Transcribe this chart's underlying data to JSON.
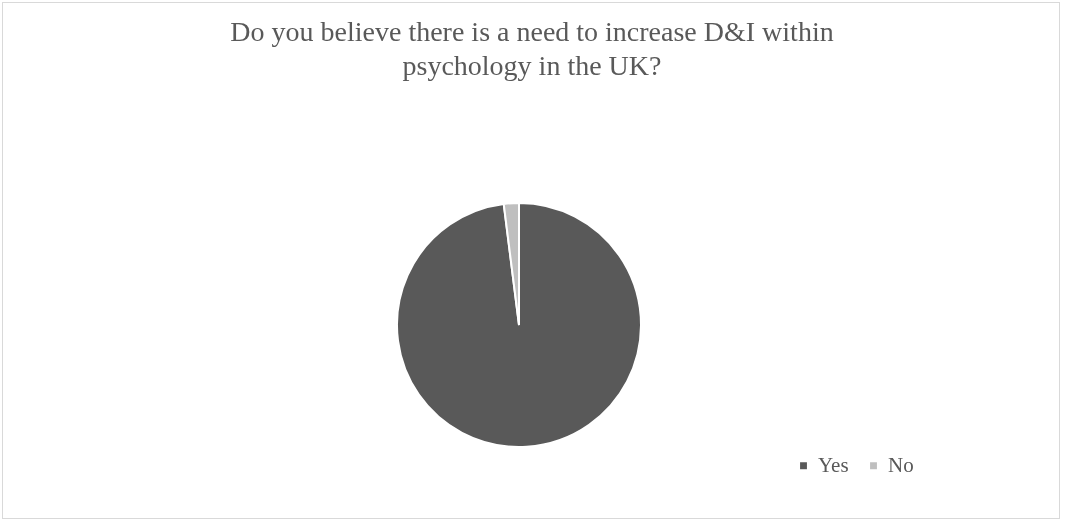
{
  "chart_data": {
    "type": "pie",
    "title": "Do you believe there is a need to increase D&I within psychology in the UK?",
    "categories": [
      "Yes",
      "No"
    ],
    "values": [
      98,
      2
    ],
    "colors": [
      "#595959",
      "#bfbfbf"
    ],
    "legend": "bottom right"
  }
}
